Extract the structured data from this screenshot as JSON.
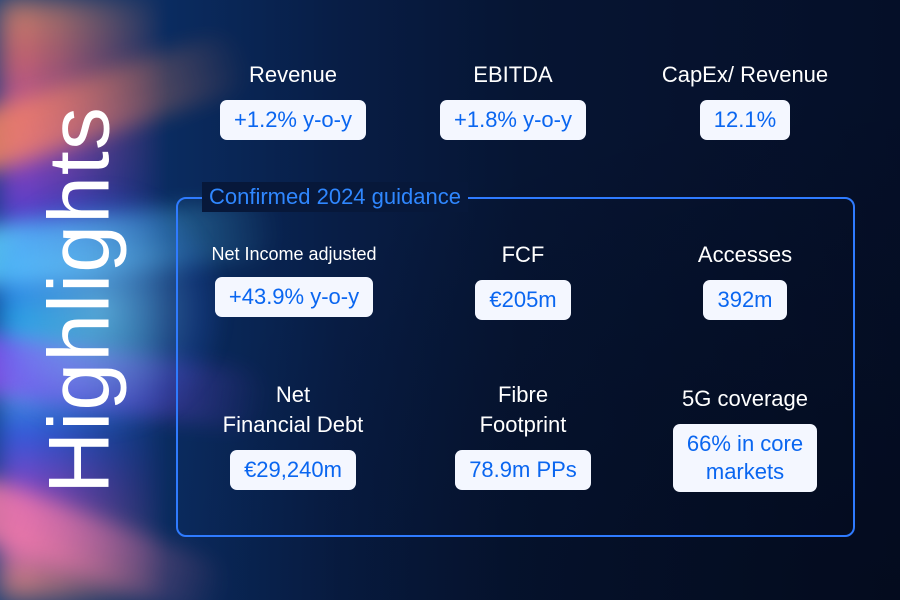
{
  "title": "Highlights",
  "top_metrics": [
    {
      "label": "Revenue",
      "value": "+1.2% y-o-y"
    },
    {
      "label": "EBITDA",
      "value": "+1.8% y-o-y"
    },
    {
      "label": "CapEx/ Revenue",
      "value": "12.1%"
    }
  ],
  "guidance": {
    "title": "Confirmed 2024 guidance",
    "metrics": [
      {
        "label": "Net Income adjusted",
        "value": "+43.9% y-o-y"
      },
      {
        "label": "FCF",
        "value": "€205m"
      },
      {
        "label": "Accesses",
        "value": "392m"
      },
      {
        "label": "Net\nFinancial Debt",
        "value": "€29,240m"
      },
      {
        "label": "Fibre\nFootprint",
        "value": "78.9m PPs"
      },
      {
        "label": "5G coverage",
        "value": "66% in core\nmarkets"
      }
    ]
  },
  "colors": {
    "accent": "#2f7bff",
    "pill_text": "#0a66f0",
    "pill_bg": "#f4f7ff",
    "background": "#061530"
  }
}
